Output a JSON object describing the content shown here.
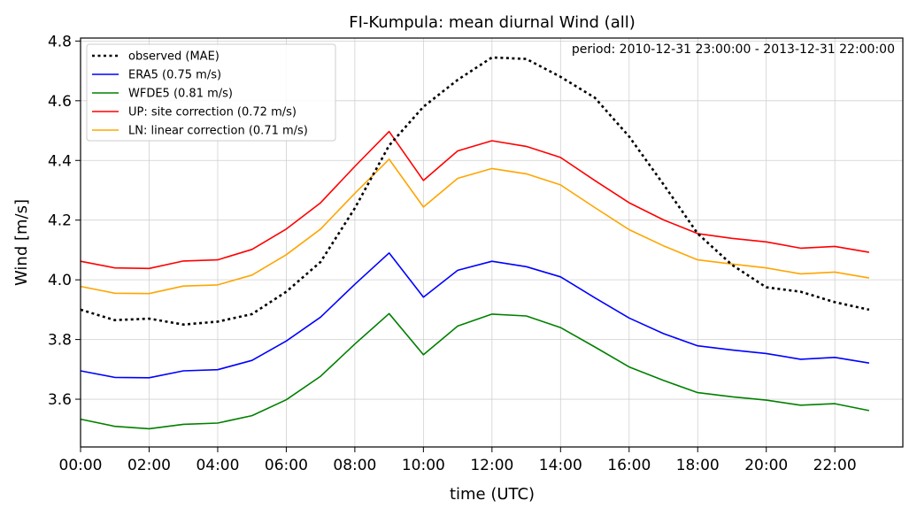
{
  "chart_data": {
    "type": "line",
    "title": "FI-Kumpula: mean diurnal Wind (all)",
    "annotation": "period: 2010-12-31 23:00:00 - 2013-12-31 22:00:00",
    "xlabel": "time (UTC)",
    "ylabel": "Wind [m/s]",
    "x_hours": [
      0,
      1,
      2,
      3,
      4,
      5,
      6,
      7,
      8,
      9,
      10,
      11,
      12,
      13,
      14,
      15,
      16,
      17,
      18,
      19,
      20,
      21,
      22,
      23
    ],
    "x_tick_labels": [
      "00:00",
      "02:00",
      "04:00",
      "06:00",
      "08:00",
      "10:00",
      "12:00",
      "14:00",
      "16:00",
      "18:00",
      "20:00",
      "22:00"
    ],
    "xlim": [
      "00:00",
      "23:59"
    ],
    "ylim": [
      3.44,
      4.81
    ],
    "y_ticks": [
      "3.6",
      "3.8",
      "4.0",
      "4.2",
      "4.4",
      "4.6",
      "4.8"
    ],
    "grid": true,
    "legend_position": "top-left",
    "series": [
      {
        "name": "observed (MAE)",
        "color": "#000000",
        "style": "dotted",
        "values": [
          3.9,
          3.865,
          3.87,
          3.85,
          3.86,
          3.885,
          3.96,
          4.06,
          4.24,
          4.45,
          4.58,
          4.67,
          4.745,
          4.74,
          4.68,
          4.61,
          4.48,
          4.32,
          4.155,
          4.05,
          3.975,
          3.96,
          3.925,
          3.9
        ]
      },
      {
        "name": "ERA5 (0.75 m/s)",
        "color": "#0000ff",
        "style": "solid",
        "values": [
          3.695,
          3.673,
          3.672,
          3.695,
          3.699,
          3.73,
          3.795,
          3.875,
          3.985,
          4.09,
          3.942,
          4.032,
          4.062,
          4.044,
          4.01,
          3.94,
          3.872,
          3.82,
          3.779,
          3.765,
          3.753,
          3.734,
          3.74,
          3.721
        ]
      },
      {
        "name": "WFDE5 (0.81 m/s)",
        "color": "#008000",
        "style": "solid",
        "values": [
          3.533,
          3.509,
          3.501,
          3.516,
          3.52,
          3.545,
          3.598,
          3.677,
          3.785,
          3.887,
          3.749,
          3.845,
          3.885,
          3.879,
          3.84,
          3.775,
          3.708,
          3.663,
          3.622,
          3.608,
          3.597,
          3.58,
          3.585,
          3.562
        ]
      },
      {
        "name": "UP: site correction (0.72 m/s)",
        "color": "#ff0000",
        "style": "solid",
        "values": [
          4.062,
          4.04,
          4.038,
          4.063,
          4.067,
          4.102,
          4.17,
          4.258,
          4.38,
          4.497,
          4.333,
          4.432,
          4.466,
          4.447,
          4.41,
          4.333,
          4.258,
          4.201,
          4.155,
          4.139,
          4.127,
          4.106,
          4.112,
          4.092
        ]
      },
      {
        "name": "LN: linear correction (0.71 m/s)",
        "color": "#ffa500",
        "style": "solid",
        "values": [
          3.978,
          3.955,
          3.954,
          3.979,
          3.983,
          4.016,
          4.084,
          4.17,
          4.29,
          4.404,
          4.244,
          4.34,
          4.373,
          4.355,
          4.318,
          4.242,
          4.168,
          4.114,
          4.067,
          4.053,
          4.04,
          4.02,
          4.026,
          4.006
        ]
      }
    ]
  }
}
